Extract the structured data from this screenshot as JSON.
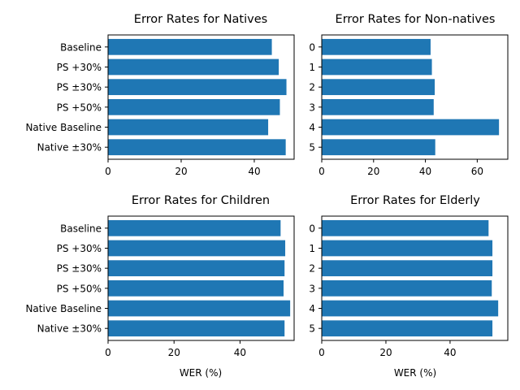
{
  "chart_data": [
    {
      "type": "bar",
      "orientation": "horizontal",
      "title": "Error Rates for Natives",
      "categories": [
        "Baseline",
        "PS +30%",
        "PS ±30%",
        "PS +50%",
        "Native Baseline",
        "Native ±30%"
      ],
      "values": [
        44.8,
        46.7,
        48.8,
        47.0,
        43.8,
        48.6
      ],
      "xlim": [
        0,
        50.9
      ],
      "xticks": [
        0,
        20,
        40
      ],
      "xlabel": "",
      "bar_color": "#1f77b4",
      "grid": false
    },
    {
      "type": "bar",
      "orientation": "horizontal",
      "title": "Error Rates for Non-natives",
      "categories": [
        "0",
        "1",
        "2",
        "3",
        "4",
        "5"
      ],
      "values": [
        42.0,
        42.5,
        43.6,
        43.2,
        68.4,
        43.8
      ],
      "xlim": [
        0,
        71.8
      ],
      "xticks": [
        0,
        20,
        40,
        60
      ],
      "xlabel": "",
      "bar_color": "#1f77b4",
      "grid": false
    },
    {
      "type": "bar",
      "orientation": "horizontal",
      "title": "Error Rates for Children",
      "categories": [
        "Baseline",
        "PS +30%",
        "PS ±30%",
        "PS +50%",
        "Native Baseline",
        "Native ±30%"
      ],
      "values": [
        52.3,
        53.7,
        53.5,
        53.2,
        55.2,
        53.5
      ],
      "xlim": [
        0,
        56.4
      ],
      "xticks": [
        0,
        20,
        40
      ],
      "xlabel": "WER (%)",
      "bar_color": "#1f77b4",
      "grid": false
    },
    {
      "type": "bar",
      "orientation": "horizontal",
      "title": "Error Rates for Elderly",
      "categories": [
        "0",
        "1",
        "2",
        "3",
        "4",
        "5"
      ],
      "values": [
        52.0,
        53.2,
        53.2,
        53.0,
        55.0,
        53.2
      ],
      "xlim": [
        0,
        58.0
      ],
      "xticks": [
        0,
        20,
        40
      ],
      "xlabel": "WER (%)",
      "bar_color": "#1f77b4",
      "grid": false
    }
  ]
}
